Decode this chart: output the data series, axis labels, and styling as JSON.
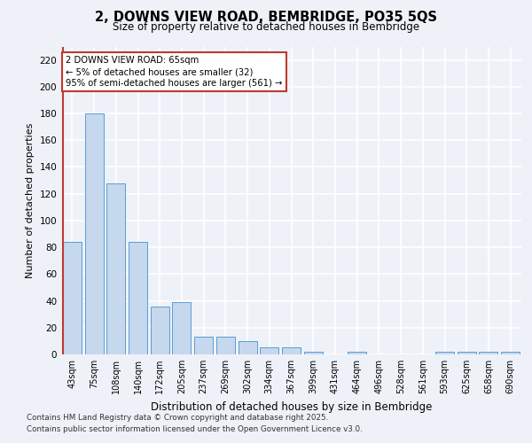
{
  "title_line1": "2, DOWNS VIEW ROAD, BEMBRIDGE, PO35 5QS",
  "title_line2": "Size of property relative to detached houses in Bembridge",
  "xlabel": "Distribution of detached houses by size in Bembridge",
  "ylabel": "Number of detached properties",
  "categories": [
    "43sqm",
    "75sqm",
    "108sqm",
    "140sqm",
    "172sqm",
    "205sqm",
    "237sqm",
    "269sqm",
    "302sqm",
    "334sqm",
    "367sqm",
    "399sqm",
    "431sqm",
    "464sqm",
    "496sqm",
    "528sqm",
    "561sqm",
    "593sqm",
    "625sqm",
    "658sqm",
    "690sqm"
  ],
  "values": [
    84,
    180,
    128,
    84,
    36,
    39,
    13,
    13,
    10,
    5,
    5,
    2,
    0,
    2,
    0,
    0,
    0,
    2,
    2,
    2,
    2
  ],
  "bar_color": "#c5d8ed",
  "bar_edge_color": "#5b9bd5",
  "vline_color": "#c0392b",
  "annotation_text": "2 DOWNS VIEW ROAD: 65sqm\n← 5% of detached houses are smaller (32)\n95% of semi-detached houses are larger (561) →",
  "annotation_box_color": "white",
  "annotation_box_edge_color": "#c0392b",
  "ylim": [
    0,
    230
  ],
  "yticks": [
    0,
    20,
    40,
    60,
    80,
    100,
    120,
    140,
    160,
    180,
    200,
    220
  ],
  "footer_line1": "Contains HM Land Registry data © Crown copyright and database right 2025.",
  "footer_line2": "Contains public sector information licensed under the Open Government Licence v3.0.",
  "bg_color": "#eef2f8",
  "plot_bg_color": "#eef2f8",
  "grid_color": "#ffffff"
}
